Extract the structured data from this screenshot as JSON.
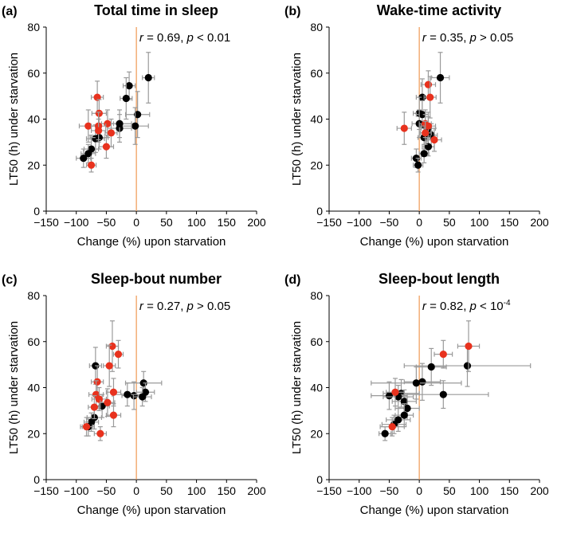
{
  "chart_data": [
    {
      "type": "scatter",
      "label": "(a)",
      "title": "Total time in sleep",
      "xlabel": "Change (%) upon starvation",
      "ylabel": "LT50 (h) under starvation",
      "xlim": [
        -150,
        200
      ],
      "ylim": [
        0,
        80
      ],
      "xticks": [
        "−150",
        "−100",
        "−50",
        "0",
        "50",
        "100",
        "150",
        "200"
      ],
      "yticks": [
        "0",
        "20",
        "40",
        "60",
        "80"
      ],
      "annotation": {
        "r_label": "r",
        "r_text": " = 0.69, ",
        "p_label": "p",
        "p_text": " < 0.01",
        "p_sup": ""
      },
      "series": [
        {
          "name": "black",
          "color": "#000000",
          "points": [
            {
              "x": 20,
              "y": 58,
              "xe": 10,
              "ye": 11
            },
            {
              "x": -12,
              "y": 54.5,
              "xe": 10,
              "ye": 6
            },
            {
              "x": -17,
              "y": 49,
              "xe": 10,
              "ye": 9
            },
            {
              "x": 2,
              "y": 42,
              "xe": 20,
              "ye": 10
            },
            {
              "x": -2,
              "y": 37,
              "xe": 22,
              "ye": 8
            },
            {
              "x": -28,
              "y": 36,
              "xe": 20,
              "ye": 6
            },
            {
              "x": -28,
              "y": 38,
              "xe": 20,
              "ye": 6
            },
            {
              "x": -68,
              "y": 31.5,
              "xe": 15,
              "ye": 6
            },
            {
              "x": -62,
              "y": 32,
              "xe": 15,
              "ye": 5
            },
            {
              "x": -75,
              "y": 27,
              "xe": 12,
              "ye": 6
            },
            {
              "x": -80,
              "y": 25,
              "xe": 12,
              "ye": 4
            },
            {
              "x": -88,
              "y": 23,
              "xe": 12,
              "ye": 4
            }
          ]
        },
        {
          "name": "red",
          "color": "#e8321e",
          "points": [
            {
              "x": -65,
              "y": 49.5,
              "xe": 10,
              "ye": 7
            },
            {
              "x": -62,
              "y": 42.5,
              "xe": 12,
              "ye": 6
            },
            {
              "x": -48,
              "y": 38,
              "xe": 10,
              "ye": 6
            },
            {
              "x": -80,
              "y": 37,
              "xe": 15,
              "ye": 7
            },
            {
              "x": -63,
              "y": 37,
              "xe": 12,
              "ye": 6
            },
            {
              "x": -63,
              "y": 35,
              "xe": 12,
              "ye": 5
            },
            {
              "x": -42,
              "y": 34,
              "xe": 10,
              "ye": 6
            },
            {
              "x": -50,
              "y": 28,
              "xe": 12,
              "ye": 5
            },
            {
              "x": -75,
              "y": 20,
              "xe": 8,
              "ye": 3
            }
          ]
        }
      ]
    },
    {
      "type": "scatter",
      "label": "(b)",
      "title": "Wake-time activity",
      "xlabel": "Change (%) upon starvation",
      "ylabel": "LT50 (h) under starvation",
      "xlim": [
        -150,
        200
      ],
      "ylim": [
        0,
        80
      ],
      "xticks": [
        "−150",
        "−100",
        "−50",
        "0",
        "50",
        "100",
        "150",
        "200"
      ],
      "yticks": [
        "0",
        "20",
        "40",
        "60",
        "80"
      ],
      "annotation": {
        "r_label": "r",
        "r_text": " = 0.35, ",
        "p_label": "p",
        "p_text": " > 0.05",
        "p_sup": ""
      },
      "series": [
        {
          "name": "black",
          "color": "#000000",
          "points": [
            {
              "x": 35,
              "y": 58,
              "xe": 15,
              "ye": 11
            },
            {
              "x": 5,
              "y": 49.5,
              "xe": 10,
              "ye": 8
            },
            {
              "x": 0,
              "y": 42.5,
              "xe": 10,
              "ye": 7
            },
            {
              "x": 5,
              "y": 42,
              "xe": 10,
              "ye": 6
            },
            {
              "x": 0,
              "y": 38,
              "xe": 12,
              "ye": 6
            },
            {
              "x": 10,
              "y": 37,
              "xe": 10,
              "ye": 5
            },
            {
              "x": 15,
              "y": 36,
              "xe": 12,
              "ye": 5
            },
            {
              "x": 12,
              "y": 34,
              "xe": 10,
              "ye": 5
            },
            {
              "x": 20,
              "y": 33,
              "xe": 10,
              "ye": 5
            },
            {
              "x": 8,
              "y": 32,
              "xe": 10,
              "ye": 5
            },
            {
              "x": 15,
              "y": 28,
              "xe": 10,
              "ye": 4
            },
            {
              "x": 8,
              "y": 25,
              "xe": 8,
              "ye": 4
            },
            {
              "x": -5,
              "y": 23,
              "xe": 8,
              "ye": 4
            },
            {
              "x": -2,
              "y": 20,
              "xe": 8,
              "ye": 3
            }
          ]
        },
        {
          "name": "red",
          "color": "#e8321e",
          "points": [
            {
              "x": 15,
              "y": 55,
              "xe": 12,
              "ye": 6
            },
            {
              "x": 18,
              "y": 49.5,
              "xe": 10,
              "ye": 9
            },
            {
              "x": 10,
              "y": 38,
              "xe": 10,
              "ye": 6
            },
            {
              "x": 15,
              "y": 37,
              "xe": 12,
              "ye": 6
            },
            {
              "x": -25,
              "y": 36,
              "xe": 12,
              "ye": 7
            },
            {
              "x": 10,
              "y": 34,
              "xe": 10,
              "ye": 5
            },
            {
              "x": 25,
              "y": 31,
              "xe": 12,
              "ye": 5
            }
          ]
        }
      ]
    },
    {
      "type": "scatter",
      "label": "(c)",
      "title": "Sleep-bout number",
      "xlabel": "Change (%) upon starvation",
      "ylabel": "LT50 (h) under starvation",
      "xlim": [
        -150,
        200
      ],
      "ylim": [
        0,
        80
      ],
      "xticks": [
        "−150",
        "−100",
        "−50",
        "0",
        "50",
        "100",
        "150",
        "200"
      ],
      "yticks": [
        "0",
        "20",
        "40",
        "60",
        "80"
      ],
      "annotation": {
        "r_label": "r",
        "r_text": " = 0.27, ",
        "p_label": "p",
        "p_text": " > 0.05",
        "p_sup": ""
      },
      "series": [
        {
          "name": "black",
          "color": "#000000",
          "points": [
            {
              "x": -68,
              "y": 49.5,
              "xe": 10,
              "ye": 8
            },
            {
              "x": 12,
              "y": 42,
              "xe": 30,
              "ye": 5
            },
            {
              "x": -4,
              "y": 36.5,
              "xe": 20,
              "ye": 6
            },
            {
              "x": -15,
              "y": 37,
              "xe": 25,
              "ye": 5
            },
            {
              "x": 15,
              "y": 38,
              "xe": 15,
              "ye": 4
            },
            {
              "x": 10,
              "y": 36,
              "xe": 15,
              "ye": 4
            },
            {
              "x": -57,
              "y": 32,
              "xe": 12,
              "ye": 5
            },
            {
              "x": -70,
              "y": 27,
              "xe": 12,
              "ye": 5
            },
            {
              "x": -75,
              "y": 25,
              "xe": 12,
              "ye": 4
            },
            {
              "x": -80,
              "y": 23,
              "xe": 10,
              "ye": 4
            }
          ]
        },
        {
          "name": "red",
          "color": "#e8321e",
          "points": [
            {
              "x": -40,
              "y": 58,
              "xe": 10,
              "ye": 11
            },
            {
              "x": -30,
              "y": 54.5,
              "xe": 8,
              "ye": 6
            },
            {
              "x": -45,
              "y": 49.5,
              "xe": 10,
              "ye": 9
            },
            {
              "x": -65,
              "y": 42.5,
              "xe": 10,
              "ye": 7
            },
            {
              "x": -38,
              "y": 38,
              "xe": 12,
              "ye": 6
            },
            {
              "x": -67,
              "y": 37,
              "xe": 12,
              "ye": 6
            },
            {
              "x": -62,
              "y": 35,
              "xe": 12,
              "ye": 5
            },
            {
              "x": -48,
              "y": 33.5,
              "xe": 12,
              "ye": 6
            },
            {
              "x": -70,
              "y": 31.5,
              "xe": 10,
              "ye": 5
            },
            {
              "x": -38,
              "y": 28,
              "xe": 12,
              "ye": 5
            },
            {
              "x": -83,
              "y": 23,
              "xe": 10,
              "ye": 4
            },
            {
              "x": -60,
              "y": 20,
              "xe": 10,
              "ye": 3
            }
          ]
        }
      ]
    },
    {
      "type": "scatter",
      "label": "(d)",
      "title": "Sleep-bout length",
      "xlabel": "Change (%) upon starvation",
      "ylabel": "LT50 (h) under starvation",
      "xlim": [
        -150,
        200
      ],
      "ylim": [
        0,
        80
      ],
      "xticks": [
        "−150",
        "−100",
        "−50",
        "0",
        "50",
        "100",
        "150",
        "200"
      ],
      "yticks": [
        "0",
        "20",
        "40",
        "60",
        "80"
      ],
      "annotation": {
        "r_label": "r",
        "r_text": " = 0.82, ",
        "p_label": "p",
        "p_text": " < 10",
        "p_sup": "-4"
      },
      "series": [
        {
          "name": "black",
          "color": "#000000",
          "points": [
            {
              "x": 80,
              "y": 49.5,
              "xe": 105,
              "ye": 9
            },
            {
              "x": 20,
              "y": 49,
              "xe": 25,
              "ye": 8
            },
            {
              "x": 5,
              "y": 42.5,
              "xe": 30,
              "ye": 8
            },
            {
              "x": -5,
              "y": 42,
              "xe": 75,
              "ye": 7
            },
            {
              "x": -30,
              "y": 37.5,
              "xe": 30,
              "ye": 6
            },
            {
              "x": 40,
              "y": 37,
              "xe": 75,
              "ye": 6
            },
            {
              "x": -50,
              "y": 36.5,
              "xe": 30,
              "ye": 6
            },
            {
              "x": -35,
              "y": 36,
              "xe": 25,
              "ye": 5
            },
            {
              "x": -25,
              "y": 34,
              "xe": 20,
              "ye": 5
            },
            {
              "x": -20,
              "y": 31,
              "xe": 20,
              "ye": 5
            },
            {
              "x": -25,
              "y": 28,
              "xe": 15,
              "ye": 5
            },
            {
              "x": -35,
              "y": 26,
              "xe": 20,
              "ye": 5
            },
            {
              "x": -42,
              "y": 24,
              "xe": 20,
              "ye": 4
            },
            {
              "x": -57,
              "y": 20,
              "xe": 10,
              "ye": 3
            }
          ]
        },
        {
          "name": "red",
          "color": "#e8321e",
          "points": [
            {
              "x": 82,
              "y": 58,
              "xe": 18,
              "ye": 11
            },
            {
              "x": 40,
              "y": 54.5,
              "xe": 15,
              "ye": 6
            },
            {
              "x": -40,
              "y": 38,
              "xe": 15,
              "ye": 6
            },
            {
              "x": -45,
              "y": 23,
              "xe": 20,
              "ye": 4
            }
          ]
        }
      ]
    }
  ]
}
